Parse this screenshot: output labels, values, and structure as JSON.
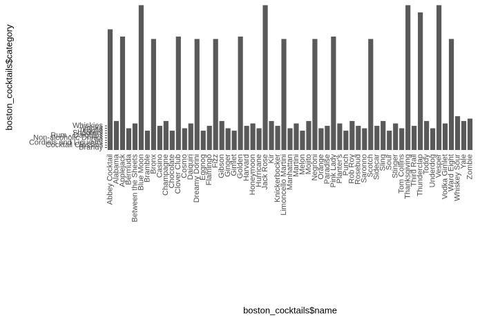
{
  "chart_data": {
    "type": "bar",
    "x_label": "boston_cocktails$name",
    "y_label": "boston_cocktails$category",
    "categories": [
      "Abbey Cocktail",
      "Alabama",
      "Applejack",
      "Bermuda",
      "Between the Sheets",
      "Blue Moon",
      "Bramble",
      "Bronx",
      "Casino",
      "Champagne",
      "Chocolate",
      "Clover Club",
      "Cosmo",
      "Daiquiri",
      "Dreamy Dorini",
      "Eggnog",
      "Flamingo",
      "Fizz",
      "Gibson",
      "Ginger",
      "Gimlet",
      "Golden",
      "Harvard",
      "Honeymoon",
      "Hurricane",
      "Jack Rose",
      "Kir",
      "Knickerbocker",
      "Limoncello Martini",
      "Manhattan",
      "Martini",
      "Melon",
      "Mojito",
      "Negroni",
      "Orange",
      "Paradise",
      "Pink Lady",
      "Planter's",
      "Punch",
      "Rob Roy",
      "Rosebud",
      "Saronno",
      "Scotch",
      "Sidecar",
      "Sling",
      "Sour",
      "Stinger",
      "Tom Collins",
      "Thanksgiving",
      "Third Rail",
      "Thunderclap",
      "Toddy",
      "Underdog",
      "Vesper",
      "Vodka Gimlet",
      "Ward Eight",
      "Whiskey Sour",
      "Yale",
      "Zombie"
    ],
    "values": [
      50,
      12,
      47,
      9,
      11,
      60,
      8,
      46,
      10,
      12,
      8,
      47,
      9,
      11,
      46,
      8,
      10,
      46,
      12,
      9,
      8,
      47,
      10,
      11,
      9,
      60,
      12,
      10,
      46,
      9,
      11,
      8,
      12,
      46,
      9,
      10,
      47,
      11,
      8,
      12,
      10,
      9,
      46,
      10,
      12,
      8,
      11,
      9,
      60,
      10,
      57,
      12,
      9,
      60,
      11,
      46,
      14,
      12,
      13
    ],
    "color": "#595959",
    "ylim": [
      0,
      61
    ],
    "yticks": [
      {
        "value": 1,
        "label": "Brandy"
      },
      {
        "value": 2,
        "label": "Cocktail Classics"
      },
      {
        "value": 3,
        "label": "Cordials and Liqueurs"
      },
      {
        "value": 4,
        "label": "Gin"
      },
      {
        "value": 5,
        "label": "Non-alcoholic Drinks"
      },
      {
        "value": 6,
        "label": "Rum - Daiquiris"
      },
      {
        "value": 7,
        "label": "Shooters"
      },
      {
        "value": 8,
        "label": "Tequila"
      },
      {
        "value": 9,
        "label": "Vodka"
      },
      {
        "value": 10,
        "label": "Whiskies"
      }
    ],
    "grid": false
  }
}
